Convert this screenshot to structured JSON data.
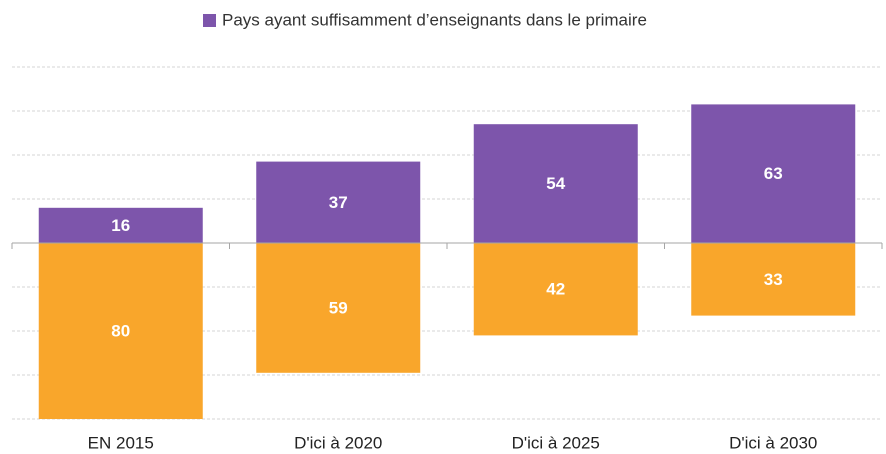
{
  "chart_data": {
    "type": "bar",
    "categories": [
      "EN 2015",
      "D'ici à 2020",
      "D'ici à 2025",
      "D'ici à 2030"
    ],
    "series": [
      {
        "name": "Pays ayant suffisamment d’enseignants dans le primaire",
        "color": "#7d55ab",
        "values": [
          16,
          37,
          54,
          63
        ]
      },
      {
        "color": "#f9a62b",
        "values": [
          80,
          59,
          42,
          33
        ],
        "direction": "down"
      }
    ],
    "ylim": [
      -80,
      80
    ],
    "yticks": [
      -80,
      -60,
      -40,
      -20,
      0,
      20,
      40,
      60,
      80
    ],
    "grid": true,
    "legend": "top"
  }
}
